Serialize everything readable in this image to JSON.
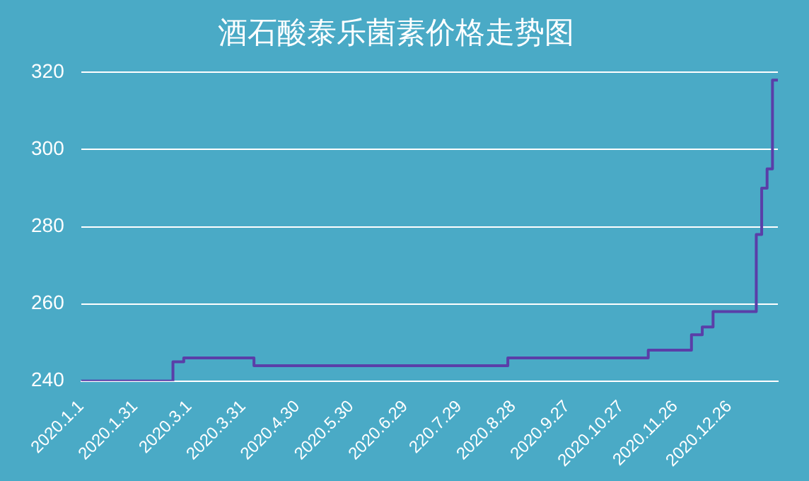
{
  "chart_data": {
    "type": "step",
    "title": "酒石酸泰乐菌素价格走势图",
    "categories": [
      "2020.1.1",
      null,
      null,
      null,
      null,
      null,
      null,
      null,
      null,
      null,
      "2020.1.31",
      null,
      null,
      null,
      null,
      null,
      null,
      null,
      null,
      null,
      "2020.3.1",
      null,
      null,
      null,
      null,
      null,
      null,
      null,
      null,
      null,
      "2020.3.31",
      null,
      null,
      null,
      null,
      null,
      null,
      null,
      null,
      null,
      "2020.4.30",
      null,
      null,
      null,
      null,
      null,
      null,
      null,
      null,
      null,
      "2020.5.30",
      null,
      null,
      null,
      null,
      null,
      null,
      null,
      null,
      null,
      "2020.6.29",
      null,
      null,
      null,
      null,
      null,
      null,
      null,
      null,
      null,
      "220.7.29",
      null,
      null,
      null,
      null,
      null,
      null,
      null,
      null,
      null,
      "2020.8.28",
      null,
      null,
      null,
      null,
      null,
      null,
      null,
      null,
      null,
      "2020.9.27",
      null,
      null,
      null,
      null,
      null,
      null,
      null,
      null,
      null,
      "2020.10.27",
      null,
      null,
      null,
      null,
      null,
      null,
      null,
      null,
      null,
      "2020.11.26",
      null,
      null,
      null,
      null,
      null,
      null,
      null,
      null,
      null,
      "2020.12.26",
      null,
      null,
      null,
      null,
      null,
      null,
      null,
      null,
      null
    ],
    "series": [
      {
        "color": "#5a3ea8",
        "values": [
          240,
          240,
          240,
          240,
          240,
          240,
          240,
          240,
          240,
          240,
          240,
          240,
          240,
          240,
          240,
          240,
          240,
          245,
          245,
          246,
          246,
          246,
          246,
          246,
          246,
          246,
          246,
          246,
          246,
          246,
          246,
          246,
          244,
          244,
          244,
          244,
          244,
          244,
          244,
          244,
          244,
          244,
          244,
          244,
          244,
          244,
          244,
          244,
          244,
          244,
          244,
          244,
          244,
          244,
          244,
          244,
          244,
          244,
          244,
          244,
          244,
          244,
          244,
          244,
          244,
          244,
          244,
          244,
          244,
          244,
          244,
          244,
          244,
          244,
          244,
          244,
          244,
          244,
          244,
          246,
          246,
          246,
          246,
          246,
          246,
          246,
          246,
          246,
          246,
          246,
          246,
          246,
          246,
          246,
          246,
          246,
          246,
          246,
          246,
          246,
          246,
          246,
          246,
          246,
          246,
          248,
          248,
          248,
          248,
          248,
          248,
          248,
          248,
          252,
          252,
          254,
          254,
          258,
          258,
          258,
          258,
          258,
          258,
          258,
          258,
          278,
          290,
          295,
          318,
          318
        ]
      }
    ],
    "ylim": [
      240,
      320
    ],
    "yticks": [
      240,
      260,
      280,
      300,
      320
    ],
    "grid": "y",
    "legend": false
  }
}
